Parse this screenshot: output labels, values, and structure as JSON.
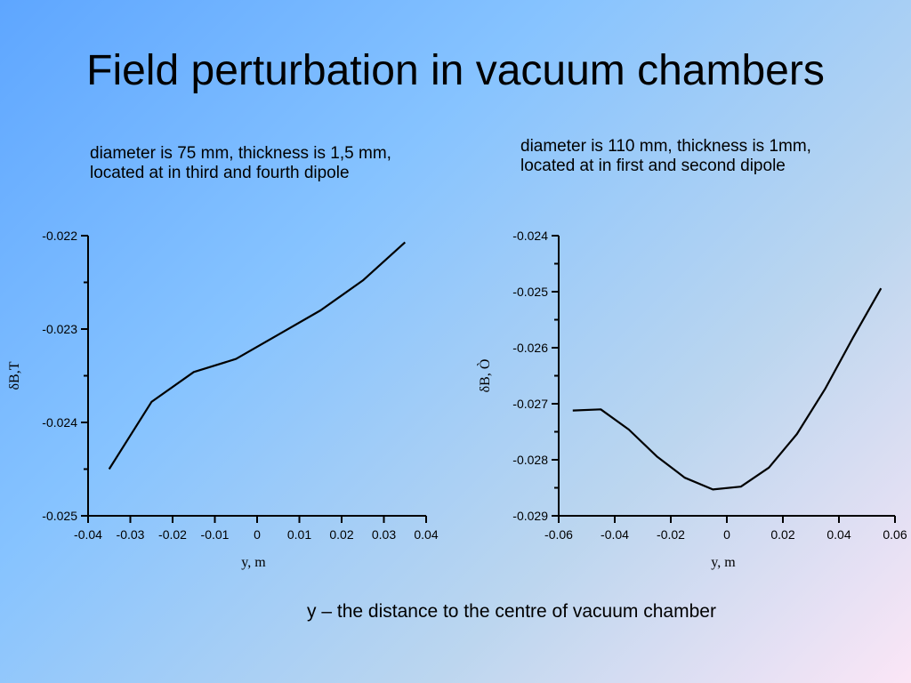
{
  "slide": {
    "title": "Field perturbation in vacuum chambers",
    "footer": "y – the distance to the centre of vacuum chamber"
  },
  "captions": [
    {
      "line1": "diameter is 75 mm, thickness is 1,5 mm,",
      "line2": "located at in third and fourth dipole"
    },
    {
      "line1": "diameter is 110 mm, thickness is 1mm,",
      "line2": "located at in first and second dipole"
    }
  ],
  "chart_data": [
    {
      "type": "line",
      "title": "",
      "xlabel": "y, m",
      "ylabel": "δB,T",
      "xlim": [
        -0.04,
        0.04
      ],
      "ylim": [
        -0.025,
        -0.022
      ],
      "x_ticks": [
        "-0.04",
        "-0.03",
        "-0.02",
        "-0.01",
        "0",
        "0.01",
        "0.02",
        "0.03",
        "0.04"
      ],
      "x_tick_values": [
        -0.04,
        -0.03,
        -0.02,
        -0.01,
        0,
        0.01,
        0.02,
        0.03,
        0.04
      ],
      "y_ticks": [
        "-0.022",
        "-0.023",
        "-0.024",
        "-0.025"
      ],
      "y_tick_values": [
        -0.022,
        -0.023,
        -0.024,
        -0.025
      ],
      "y_minor_step": 0.0005,
      "grid": false,
      "series": [
        {
          "x": [
            -0.035,
            -0.025,
            -0.015,
            -0.005,
            0.005,
            0.015,
            0.025,
            0.035
          ],
          "y": [
            -0.0245,
            -0.02378,
            -0.02346,
            -0.02332,
            -0.02306,
            -0.0228,
            -0.02248,
            -0.02207
          ]
        }
      ]
    },
    {
      "type": "line",
      "title": "",
      "xlabel": "y, m",
      "ylabel": "δB, Ò",
      "xlim": [
        -0.06,
        0.06
      ],
      "ylim": [
        -0.029,
        -0.024
      ],
      "x_ticks": [
        "-0.06",
        "-0.04",
        "-0.02",
        "0",
        "0.02",
        "0.04",
        "0.06"
      ],
      "x_tick_values": [
        -0.06,
        -0.04,
        -0.02,
        0,
        0.02,
        0.04,
        0.06
      ],
      "y_ticks": [
        "-0.024",
        "-0.025",
        "-0.026",
        "-0.027",
        "-0.028",
        "-0.029"
      ],
      "y_tick_values": [
        -0.024,
        -0.025,
        -0.026,
        -0.027,
        -0.028,
        -0.029
      ],
      "y_minor_step": 0.0005,
      "grid": false,
      "series": [
        {
          "x": [
            -0.055,
            -0.045,
            -0.035,
            -0.025,
            -0.015,
            -0.005,
            0.005,
            0.015,
            0.025,
            0.035,
            0.045,
            0.055
          ],
          "y": [
            -0.02712,
            -0.0271,
            -0.02746,
            -0.02794,
            -0.02832,
            -0.02853,
            -0.02848,
            -0.02814,
            -0.02754,
            -0.02674,
            -0.02582,
            -0.02494
          ]
        }
      ]
    }
  ]
}
